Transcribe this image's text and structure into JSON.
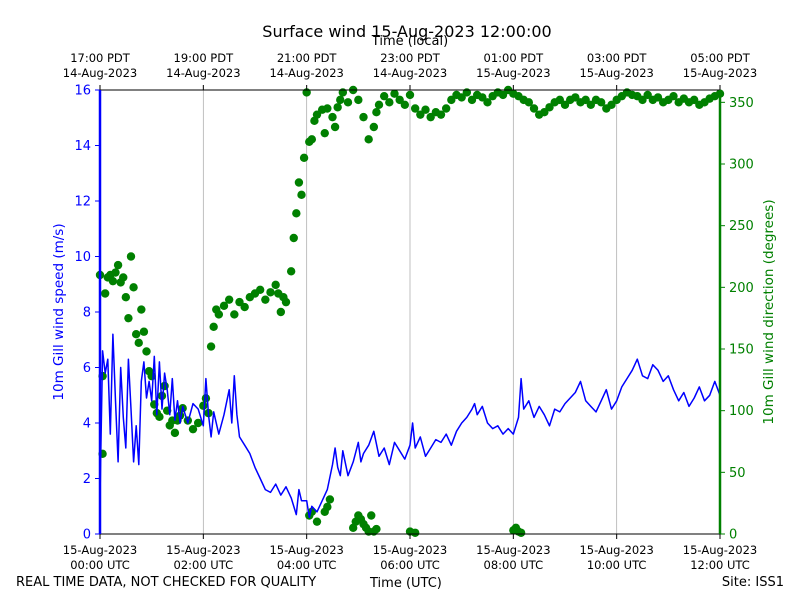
{
  "page": {
    "title": "Surface wind 15-Aug-2023 12:00:00",
    "top_axis_label": "Time (local)",
    "footer_left": "REAL TIME DATA, NOT CHECKED FOR QUALITY",
    "footer_center": "Time (UTC)",
    "footer_right": "Site: ISS1"
  },
  "chart_data": {
    "type": "line",
    "title": "Surface wind 15-Aug-2023 12:00:00",
    "xlabel": "Time (UTC)",
    "x2label": "Time (local)",
    "grid": "vertical lines at each 2-hour tick",
    "xlim_hours": [
      0,
      12
    ],
    "x_ticks": [
      {
        "h": 0,
        "label": [
          "15-Aug-2023",
          "00:00 UTC"
        ]
      },
      {
        "h": 2,
        "label": [
          "15-Aug-2023",
          "02:00 UTC"
        ]
      },
      {
        "h": 4,
        "label": [
          "15-Aug-2023",
          "04:00 UTC"
        ]
      },
      {
        "h": 6,
        "label": [
          "15-Aug-2023",
          "06:00 UTC"
        ]
      },
      {
        "h": 8,
        "label": [
          "15-Aug-2023",
          "08:00 UTC"
        ]
      },
      {
        "h": 10,
        "label": [
          "15-Aug-2023",
          "10:00 UTC"
        ]
      },
      {
        "h": 12,
        "label": [
          "15-Aug-2023",
          "12:00 UTC"
        ]
      }
    ],
    "top_ticks": [
      {
        "h": 0,
        "label": [
          "17:00 PDT",
          "14-Aug-2023"
        ]
      },
      {
        "h": 2,
        "label": [
          "19:00 PDT",
          "14-Aug-2023"
        ]
      },
      {
        "h": 4,
        "label": [
          "21:00 PDT",
          "14-Aug-2023"
        ]
      },
      {
        "h": 6,
        "label": [
          "23:00 PDT",
          "14-Aug-2023"
        ]
      },
      {
        "h": 8,
        "label": [
          "01:00 PDT",
          "15-Aug-2023"
        ]
      },
      {
        "h": 10,
        "label": [
          "03:00 PDT",
          "15-Aug-2023"
        ]
      },
      {
        "h": 12,
        "label": [
          "05:00 PDT",
          "15-Aug-2023"
        ]
      }
    ],
    "y_left": {
      "label": "10m Gill wind speed (m/s)",
      "lim": [
        0,
        16
      ],
      "ticks": [
        0,
        2,
        4,
        6,
        8,
        10,
        12,
        14,
        16
      ],
      "color": "#0000ff"
    },
    "y_right": {
      "label": "10m Gill wind direction (degrees)",
      "lim": [
        0,
        360
      ],
      "ticks": [
        0,
        50,
        100,
        150,
        200,
        250,
        300,
        350
      ],
      "color": "#008000"
    },
    "speed_series": {
      "name": "10m Gill wind speed (m/s)",
      "style": "line",
      "color": "#0000ff",
      "points": [
        [
          0.0,
          1.3
        ],
        [
          0.05,
          6.6
        ],
        [
          0.1,
          5.8
        ],
        [
          0.15,
          6.3
        ],
        [
          0.2,
          3.6
        ],
        [
          0.25,
          7.2
        ],
        [
          0.3,
          4.8
        ],
        [
          0.35,
          2.6
        ],
        [
          0.4,
          6.0
        ],
        [
          0.45,
          4.2
        ],
        [
          0.5,
          3.1
        ],
        [
          0.55,
          6.3
        ],
        [
          0.6,
          4.5
        ],
        [
          0.65,
          2.6
        ],
        [
          0.7,
          3.9
        ],
        [
          0.75,
          2.5
        ],
        [
          0.8,
          5.5
        ],
        [
          0.85,
          6.2
        ],
        [
          0.9,
          4.9
        ],
        [
          0.95,
          5.5
        ],
        [
          1.0,
          4.8
        ],
        [
          1.05,
          6.4
        ],
        [
          1.1,
          4.3
        ],
        [
          1.15,
          6.2
        ],
        [
          1.2,
          4.5
        ],
        [
          1.25,
          5.8
        ],
        [
          1.3,
          5.2
        ],
        [
          1.35,
          4.3
        ],
        [
          1.4,
          5.6
        ],
        [
          1.45,
          4.1
        ],
        [
          1.5,
          4.8
        ],
        [
          1.55,
          4.0
        ],
        [
          1.6,
          4.6
        ],
        [
          1.7,
          4.0
        ],
        [
          1.8,
          4.7
        ],
        [
          1.9,
          4.5
        ],
        [
          2.0,
          3.9
        ],
        [
          2.05,
          5.6
        ],
        [
          2.1,
          4.3
        ],
        [
          2.15,
          3.5
        ],
        [
          2.2,
          4.4
        ],
        [
          2.3,
          3.6
        ],
        [
          2.4,
          4.3
        ],
        [
          2.5,
          5.2
        ],
        [
          2.55,
          4.0
        ],
        [
          2.6,
          5.7
        ],
        [
          2.65,
          4.3
        ],
        [
          2.7,
          3.5
        ],
        [
          2.8,
          3.2
        ],
        [
          2.9,
          2.9
        ],
        [
          3.0,
          2.4
        ],
        [
          3.1,
          2.0
        ],
        [
          3.2,
          1.6
        ],
        [
          3.3,
          1.5
        ],
        [
          3.4,
          1.8
        ],
        [
          3.5,
          1.4
        ],
        [
          3.6,
          1.7
        ],
        [
          3.7,
          1.3
        ],
        [
          3.8,
          0.7
        ],
        [
          3.85,
          1.6
        ],
        [
          3.9,
          1.2
        ],
        [
          4.0,
          1.2
        ],
        [
          4.05,
          0.6
        ],
        [
          4.1,
          1.0
        ],
        [
          4.2,
          0.8
        ],
        [
          4.3,
          1.2
        ],
        [
          4.4,
          1.6
        ],
        [
          4.5,
          2.5
        ],
        [
          4.55,
          3.1
        ],
        [
          4.6,
          2.4
        ],
        [
          4.65,
          2.1
        ],
        [
          4.7,
          3.0
        ],
        [
          4.8,
          2.1
        ],
        [
          4.9,
          2.6
        ],
        [
          5.0,
          3.3
        ],
        [
          5.05,
          2.6
        ],
        [
          5.1,
          2.9
        ],
        [
          5.2,
          3.2
        ],
        [
          5.3,
          3.7
        ],
        [
          5.4,
          2.8
        ],
        [
          5.5,
          3.1
        ],
        [
          5.6,
          2.5
        ],
        [
          5.7,
          3.3
        ],
        [
          5.8,
          3.0
        ],
        [
          5.9,
          2.7
        ],
        [
          6.0,
          3.2
        ],
        [
          6.05,
          4.0
        ],
        [
          6.1,
          3.1
        ],
        [
          6.2,
          3.5
        ],
        [
          6.3,
          2.8
        ],
        [
          6.4,
          3.1
        ],
        [
          6.5,
          3.4
        ],
        [
          6.6,
          3.3
        ],
        [
          6.7,
          3.6
        ],
        [
          6.8,
          3.2
        ],
        [
          6.9,
          3.7
        ],
        [
          7.0,
          4.0
        ],
        [
          7.1,
          4.2
        ],
        [
          7.2,
          4.5
        ],
        [
          7.25,
          4.7
        ],
        [
          7.3,
          4.3
        ],
        [
          7.4,
          4.6
        ],
        [
          7.5,
          4.0
        ],
        [
          7.6,
          3.8
        ],
        [
          7.7,
          3.9
        ],
        [
          7.8,
          3.6
        ],
        [
          7.9,
          3.8
        ],
        [
          8.0,
          3.6
        ],
        [
          8.05,
          3.9
        ],
        [
          8.1,
          4.2
        ],
        [
          8.15,
          5.6
        ],
        [
          8.2,
          4.5
        ],
        [
          8.3,
          4.8
        ],
        [
          8.4,
          4.2
        ],
        [
          8.5,
          4.6
        ],
        [
          8.6,
          4.3
        ],
        [
          8.7,
          3.9
        ],
        [
          8.8,
          4.5
        ],
        [
          8.9,
          4.4
        ],
        [
          9.0,
          4.7
        ],
        [
          9.1,
          4.9
        ],
        [
          9.2,
          5.1
        ],
        [
          9.3,
          5.5
        ],
        [
          9.4,
          4.8
        ],
        [
          9.5,
          4.6
        ],
        [
          9.6,
          4.4
        ],
        [
          9.7,
          4.8
        ],
        [
          9.8,
          5.2
        ],
        [
          9.9,
          4.5
        ],
        [
          10.0,
          4.8
        ],
        [
          10.1,
          5.3
        ],
        [
          10.2,
          5.6
        ],
        [
          10.3,
          5.9
        ],
        [
          10.4,
          6.3
        ],
        [
          10.5,
          5.7
        ],
        [
          10.6,
          5.6
        ],
        [
          10.7,
          6.1
        ],
        [
          10.8,
          5.9
        ],
        [
          10.9,
          5.5
        ],
        [
          11.0,
          5.7
        ],
        [
          11.1,
          5.2
        ],
        [
          11.2,
          4.8
        ],
        [
          11.3,
          5.1
        ],
        [
          11.4,
          4.6
        ],
        [
          11.5,
          4.9
        ],
        [
          11.6,
          5.3
        ],
        [
          11.7,
          4.8
        ],
        [
          11.8,
          5.0
        ],
        [
          11.9,
          5.5
        ],
        [
          12.0,
          5.0
        ]
      ]
    },
    "direction_series": {
      "name": "10m Gill wind direction (degrees)",
      "style": "dots",
      "color": "#008000",
      "points": [
        [
          0.0,
          210
        ],
        [
          0.05,
          128
        ],
        [
          0.1,
          195
        ],
        [
          0.15,
          208
        ],
        [
          0.2,
          210
        ],
        [
          0.25,
          205
        ],
        [
          0.3,
          212
        ],
        [
          0.35,
          218
        ],
        [
          0.4,
          204
        ],
        [
          0.45,
          208
        ],
        [
          0.5,
          192
        ],
        [
          0.55,
          175
        ],
        [
          0.6,
          225
        ],
        [
          0.65,
          200
        ],
        [
          0.7,
          162
        ],
        [
          0.75,
          155
        ],
        [
          0.8,
          182
        ],
        [
          0.85,
          164
        ],
        [
          0.9,
          148
        ],
        [
          0.95,
          132
        ],
        [
          1.0,
          128
        ],
        [
          1.05,
          105
        ],
        [
          1.1,
          98
        ],
        [
          1.15,
          95
        ],
        [
          1.2,
          112
        ],
        [
          1.25,
          120
        ],
        [
          1.3,
          100
        ],
        [
          1.35,
          88
        ],
        [
          1.4,
          92
        ],
        [
          1.45,
          82
        ],
        [
          1.5,
          92
        ],
        [
          1.55,
          96
        ],
        [
          1.6,
          102
        ],
        [
          1.7,
          92
        ],
        [
          1.8,
          85
        ],
        [
          1.9,
          90
        ],
        [
          2.0,
          104
        ],
        [
          2.05,
          110
        ],
        [
          2.1,
          98
        ],
        [
          2.15,
          152
        ],
        [
          2.2,
          168
        ],
        [
          2.25,
          182
        ],
        [
          2.3,
          178
        ],
        [
          2.4,
          185
        ],
        [
          2.5,
          190
        ],
        [
          2.6,
          178
        ],
        [
          2.7,
          188
        ],
        [
          2.8,
          184
        ],
        [
          2.9,
          192
        ],
        [
          3.0,
          195
        ],
        [
          3.1,
          198
        ],
        [
          3.2,
          190
        ],
        [
          3.3,
          196
        ],
        [
          3.4,
          202
        ],
        [
          3.45,
          195
        ],
        [
          3.5,
          180
        ],
        [
          3.55,
          192
        ],
        [
          3.6,
          188
        ],
        [
          3.7,
          213
        ],
        [
          3.75,
          240
        ],
        [
          3.8,
          260
        ],
        [
          3.85,
          285
        ],
        [
          3.9,
          275
        ],
        [
          3.95,
          305
        ],
        [
          4.0,
          358
        ],
        [
          4.05,
          318
        ],
        [
          4.1,
          320
        ],
        [
          4.15,
          335
        ],
        [
          4.2,
          340
        ],
        [
          4.3,
          344
        ],
        [
          4.35,
          325
        ],
        [
          4.4,
          345
        ],
        [
          4.5,
          338
        ],
        [
          4.55,
          330
        ],
        [
          4.6,
          346
        ],
        [
          4.65,
          352
        ],
        [
          4.7,
          358
        ],
        [
          4.8,
          350
        ],
        [
          4.9,
          360
        ],
        [
          5.0,
          352
        ],
        [
          5.1,
          338
        ],
        [
          5.2,
          320
        ],
        [
          5.3,
          330
        ],
        [
          5.35,
          342
        ],
        [
          5.4,
          348
        ],
        [
          5.5,
          355
        ],
        [
          5.6,
          350
        ],
        [
          5.7,
          357
        ],
        [
          5.8,
          352
        ],
        [
          5.9,
          348
        ],
        [
          6.0,
          356
        ],
        [
          6.1,
          345
        ],
        [
          6.2,
          340
        ],
        [
          6.3,
          344
        ],
        [
          6.4,
          338
        ],
        [
          6.5,
          342
        ],
        [
          6.6,
          340
        ],
        [
          6.7,
          345
        ],
        [
          6.8,
          352
        ],
        [
          6.9,
          356
        ],
        [
          7.0,
          354
        ],
        [
          7.1,
          358
        ],
        [
          7.2,
          352
        ],
        [
          7.3,
          356
        ],
        [
          7.4,
          354
        ],
        [
          7.5,
          350
        ],
        [
          7.6,
          355
        ],
        [
          7.7,
          358
        ],
        [
          7.8,
          356
        ],
        [
          7.9,
          360
        ],
        [
          8.0,
          357
        ],
        [
          8.1,
          355
        ],
        [
          8.2,
          352
        ],
        [
          8.3,
          350
        ],
        [
          8.4,
          345
        ],
        [
          8.5,
          340
        ],
        [
          8.6,
          342
        ],
        [
          8.7,
          346
        ],
        [
          8.8,
          350
        ],
        [
          8.9,
          352
        ],
        [
          9.0,
          348
        ],
        [
          9.1,
          352
        ],
        [
          9.2,
          354
        ],
        [
          9.3,
          350
        ],
        [
          9.4,
          352
        ],
        [
          9.5,
          348
        ],
        [
          9.6,
          352
        ],
        [
          9.7,
          350
        ],
        [
          9.8,
          345
        ],
        [
          9.9,
          348
        ],
        [
          10.0,
          352
        ],
        [
          10.1,
          355
        ],
        [
          10.2,
          358
        ],
        [
          10.3,
          356
        ],
        [
          10.4,
          355
        ],
        [
          10.5,
          352
        ],
        [
          10.6,
          356
        ],
        [
          10.7,
          352
        ],
        [
          10.8,
          354
        ],
        [
          10.9,
          350
        ],
        [
          11.0,
          352
        ],
        [
          11.1,
          355
        ],
        [
          11.2,
          350
        ],
        [
          11.3,
          353
        ],
        [
          11.4,
          350
        ],
        [
          11.5,
          352
        ],
        [
          11.6,
          348
        ],
        [
          11.7,
          350
        ],
        [
          11.8,
          353
        ],
        [
          11.9,
          355
        ],
        [
          12.0,
          357
        ],
        [
          4.05,
          15
        ],
        [
          4.1,
          18
        ],
        [
          4.2,
          10
        ],
        [
          4.35,
          18
        ],
        [
          4.4,
          22
        ],
        [
          4.45,
          28
        ],
        [
          4.9,
          5
        ],
        [
          4.95,
          10
        ],
        [
          5.0,
          15
        ],
        [
          5.05,
          12
        ],
        [
          5.1,
          8
        ],
        [
          5.15,
          5
        ],
        [
          5.2,
          2
        ],
        [
          5.25,
          15
        ],
        [
          5.3,
          2
        ],
        [
          5.35,
          4
        ],
        [
          6.0,
          2
        ],
        [
          6.1,
          1
        ],
        [
          8.0,
          3
        ],
        [
          8.05,
          5
        ],
        [
          8.1,
          2
        ],
        [
          8.15,
          1
        ],
        [
          0.05,
          65
        ]
      ]
    }
  }
}
